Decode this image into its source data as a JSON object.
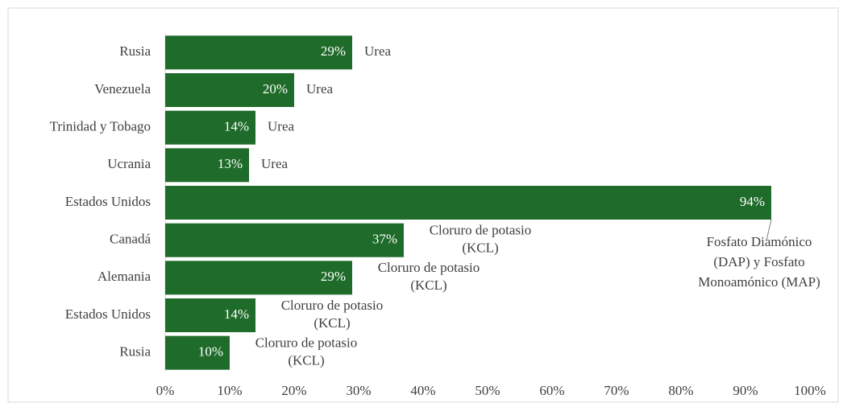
{
  "chart_data": {
    "type": "bar",
    "orientation": "horizontal",
    "categories": [
      "Rusia",
      "Venezuela",
      "Trinidad y Tobago",
      "Ucrania",
      "Estados Unidos",
      "Canadá",
      "Alemania",
      "Estados Unidos",
      "Rusia"
    ],
    "values": [
      29,
      20,
      14,
      13,
      94,
      37,
      29,
      14,
      10
    ],
    "value_labels": [
      "29%",
      "20%",
      "14%",
      "13%",
      "94%",
      "37%",
      "29%",
      "14%",
      "10%"
    ],
    "annotations": [
      [
        "Urea"
      ],
      [
        "Urea"
      ],
      [
        "Urea"
      ],
      [
        "Urea"
      ],
      [
        "Fosfato Diamónico",
        "(DAP) y Fosfato",
        "Monoamónico (MAP)"
      ],
      [
        "Cloruro de potasio",
        "(KCL)"
      ],
      [
        "Cloruro de potasio",
        "(KCL)"
      ],
      [
        "Cloruro de potasio",
        "(KCL)"
      ],
      [
        "Cloruro de potasio",
        "(KCL)"
      ]
    ],
    "color": "#1e6b2a",
    "xlim": [
      0,
      100
    ],
    "xticks": [
      {
        "value": 0,
        "label": "0%"
      },
      {
        "value": 10,
        "label": "10%"
      },
      {
        "value": 20,
        "label": "20%"
      },
      {
        "value": 30,
        "label": "30%"
      },
      {
        "value": 40,
        "label": "40%"
      },
      {
        "value": 50,
        "label": "50%"
      },
      {
        "value": 60,
        "label": "60%"
      },
      {
        "value": 70,
        "label": "70%"
      },
      {
        "value": 80,
        "label": "80%"
      },
      {
        "value": 90,
        "label": "90%"
      },
      {
        "value": 100,
        "label": "100%"
      }
    ],
    "grid": false
  }
}
